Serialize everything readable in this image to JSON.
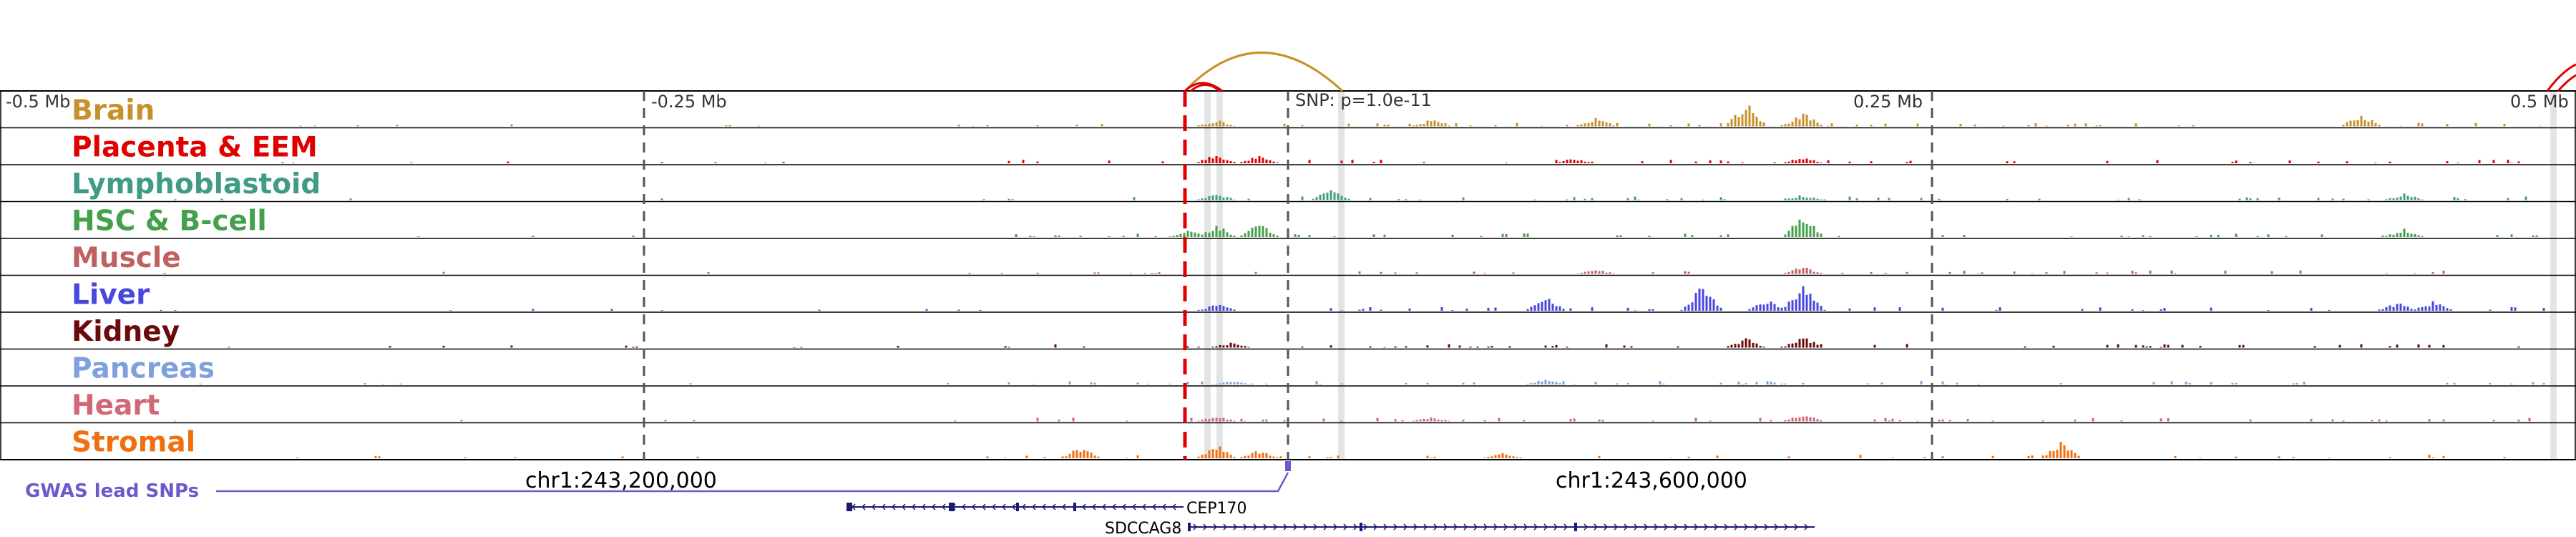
{
  "axis": {
    "ticks": [
      {
        "key": "m050",
        "label": "-0.5 Mb"
      },
      {
        "key": "m025",
        "label": "-0.25 Mb"
      },
      {
        "key": "p025",
        "label": "0.25 Mb"
      },
      {
        "key": "p050",
        "label": "0.5 Mb"
      }
    ],
    "snp_label": "SNP: p=1.0e-11"
  },
  "tracks": [
    {
      "key": "brain",
      "label": "Brain",
      "color": "#c8902a"
    },
    {
      "key": "placenta",
      "label": "Placenta & EEM",
      "color": "#e00000"
    },
    {
      "key": "lympho",
      "label": "Lymphoblastoid",
      "color": "#3f9b86"
    },
    {
      "key": "hsc",
      "label": "HSC & B-cell",
      "color": "#44a04a"
    },
    {
      "key": "muscle",
      "label": "Muscle",
      "color": "#c06060"
    },
    {
      "key": "liver",
      "label": "Liver",
      "color": "#4848e0"
    },
    {
      "key": "kidney",
      "label": "Kidney",
      "color": "#6b0a0a"
    },
    {
      "key": "pancreas",
      "label": "Pancreas",
      "color": "#7ea0dc"
    },
    {
      "key": "heart",
      "label": "Heart",
      "color": "#d06878"
    },
    {
      "key": "stromal",
      "label": "Stromal",
      "color": "#f07010"
    }
  ],
  "coordinates": {
    "left": "chr1:243,200,000",
    "right": "chr1:243,600,000"
  },
  "gwas": {
    "label": "GWAS lead SNPs",
    "color": "#6a5acd"
  },
  "genes": [
    {
      "name": "CEP170",
      "strand": "-"
    },
    {
      "name": "SDCCAG8",
      "strand": "+"
    }
  ],
  "colors": {
    "lead_snp_line": "#e00000",
    "loop_arc": "#c8902a",
    "gene": "#1a1a6e"
  }
}
